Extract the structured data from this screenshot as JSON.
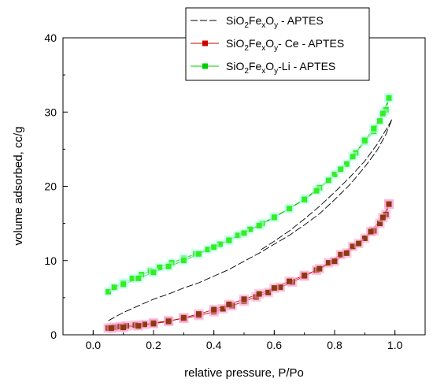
{
  "chart_data": {
    "type": "line",
    "xlabel": "relative pressure, P/Po",
    "ylabel": "volume adsorbed, cc/g",
    "xlim": [
      -0.1,
      1.1
    ],
    "ylim": [
      0,
      40
    ],
    "xticks": [
      "0.0",
      "0.2",
      "0.4",
      "0.6",
      "0.8",
      "1.0"
    ],
    "yticks": [
      "0",
      "10",
      "20",
      "30",
      "40"
    ],
    "grid": false,
    "legend_position": "top-right",
    "series": [
      {
        "name": "SiO2FexOy - APTES",
        "legend_parts": [
          [
            "SiO",
            ""
          ],
          [
            "2",
            "sub"
          ],
          [
            "Fe",
            ""
          ],
          [
            "x",
            "sub"
          ],
          [
            "O",
            ""
          ],
          [
            "y",
            "sub"
          ],
          [
            " - APTES",
            ""
          ]
        ],
        "color": "#000000",
        "style": "dashed",
        "adsorption": {
          "x": [
            0.05,
            0.1,
            0.15,
            0.2,
            0.25,
            0.3,
            0.35,
            0.4,
            0.45,
            0.5,
            0.55,
            0.6,
            0.65,
            0.7,
            0.75,
            0.8,
            0.85,
            0.9,
            0.94,
            0.97,
            0.99
          ],
          "y": [
            1.9,
            3.0,
            3.9,
            4.8,
            5.5,
            6.3,
            7.0,
            7.9,
            8.8,
            9.9,
            11.0,
            12.2,
            13.4,
            14.8,
            16.3,
            18.2,
            20.2,
            22.6,
            24.8,
            27.0,
            29.0
          ]
        },
        "desorption": {
          "x": [
            0.99,
            0.97,
            0.94,
            0.9,
            0.85,
            0.8,
            0.75,
            0.7,
            0.65,
            0.6,
            0.55
          ],
          "y": [
            29.0,
            27.6,
            25.6,
            23.4,
            21.2,
            19.2,
            17.3,
            15.6,
            14.0,
            12.6,
            11.3
          ]
        }
      },
      {
        "name": "SiO2FexOy- Ce - APTES",
        "legend_parts": [
          [
            "SiO",
            ""
          ],
          [
            "2",
            "sub"
          ],
          [
            "Fe",
            ""
          ],
          [
            "x",
            "sub"
          ],
          [
            "O",
            ""
          ],
          [
            "y",
            "sub"
          ],
          [
            "- Ce - APTES",
            ""
          ]
        ],
        "color": "#cc0000",
        "marker_color": "#8b3a10",
        "halo_color": "#ff99cc",
        "style": "solid",
        "adsorption": {
          "x": [
            0.05,
            0.07,
            0.09,
            0.11,
            0.14,
            0.17,
            0.2,
            0.25,
            0.3,
            0.35,
            0.4,
            0.43,
            0.46,
            0.5,
            0.54,
            0.58,
            0.62,
            0.66,
            0.7,
            0.74,
            0.78,
            0.82,
            0.86,
            0.9,
            0.93,
            0.95,
            0.97,
            0.98
          ],
          "y": [
            0.9,
            1.0,
            1.1,
            1.2,
            1.3,
            1.4,
            1.6,
            1.9,
            2.2,
            2.6,
            3.1,
            3.5,
            3.9,
            4.5,
            5.1,
            5.7,
            6.4,
            7.1,
            7.9,
            8.7,
            9.7,
            10.8,
            11.9,
            13.0,
            14.0,
            15.0,
            16.2,
            17.6
          ]
        },
        "desorption": {
          "x": [
            0.98,
            0.96,
            0.92,
            0.88,
            0.84,
            0.8,
            0.75,
            0.7,
            0.65,
            0.6,
            0.55,
            0.5,
            0.45,
            0.4,
            0.35,
            0.3,
            0.25,
            0.2,
            0.15,
            0.1,
            0.06
          ],
          "y": [
            17.6,
            15.8,
            13.9,
            12.3,
            11.0,
            9.9,
            8.9,
            8.0,
            7.2,
            6.3,
            5.5,
            4.8,
            4.1,
            3.4,
            2.8,
            2.3,
            1.8,
            1.5,
            1.2,
            1.0,
            0.9
          ]
        }
      },
      {
        "name": "SiO2FexOy-Li - APTES",
        "legend_parts": [
          [
            "SiO",
            ""
          ],
          [
            "2",
            "sub"
          ],
          [
            "Fe",
            ""
          ],
          [
            "x",
            "sub"
          ],
          [
            "O",
            ""
          ],
          [
            "y",
            "sub"
          ],
          [
            "-Li - APTES",
            ""
          ]
        ],
        "color": "#00cc00",
        "marker_color": "#33ee22",
        "halo_color": "#bbffee",
        "style": "solid",
        "adsorption": {
          "x": [
            0.05,
            0.07,
            0.1,
            0.13,
            0.16,
            0.19,
            0.22,
            0.26,
            0.3,
            0.34,
            0.38,
            0.42,
            0.45,
            0.48,
            0.52,
            0.56,
            0.6,
            0.65,
            0.7,
            0.75,
            0.8,
            0.84,
            0.87,
            0.9,
            0.93,
            0.95,
            0.97,
            0.98
          ],
          "y": [
            5.8,
            6.4,
            7.0,
            7.6,
            8.1,
            8.6,
            9.1,
            9.7,
            10.3,
            10.9,
            11.5,
            12.2,
            12.8,
            13.4,
            14.2,
            15.0,
            15.9,
            17.0,
            18.3,
            19.8,
            21.6,
            23.0,
            24.5,
            26.0,
            27.4,
            28.8,
            30.3,
            31.9
          ]
        },
        "desorption": {
          "x": [
            0.98,
            0.96,
            0.93,
            0.9,
            0.86,
            0.82,
            0.78,
            0.74,
            0.7,
            0.65,
            0.6,
            0.55,
            0.5,
            0.45,
            0.4,
            0.35,
            0.3,
            0.25,
            0.2,
            0.15,
            0.1
          ],
          "y": [
            31.9,
            29.8,
            27.8,
            26.2,
            24.0,
            22.3,
            20.8,
            19.4,
            18.2,
            17.0,
            15.8,
            14.7,
            13.7,
            12.7,
            11.8,
            10.9,
            10.0,
            9.2,
            8.4,
            7.6,
            6.8
          ]
        }
      }
    ]
  }
}
